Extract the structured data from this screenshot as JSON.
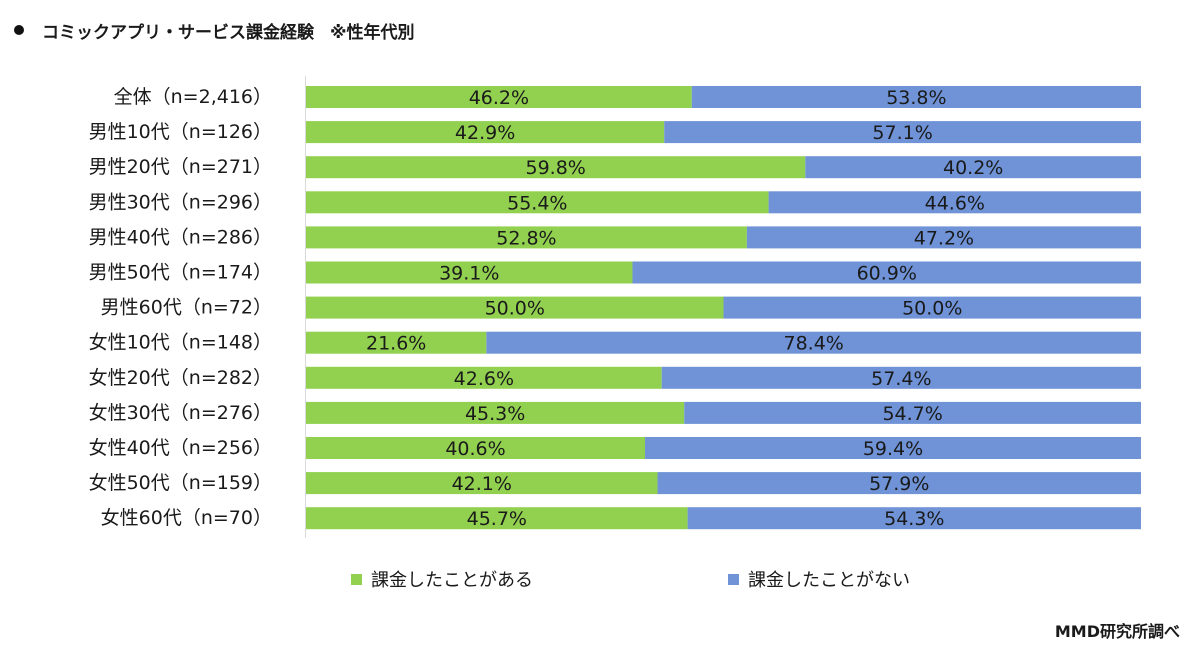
{
  "header": {
    "title": "コミックアプリ・サービス課金経験",
    "note": "※性年代別"
  },
  "colors": {
    "paid": "#92d050",
    "not_paid": "#6f93d6",
    "axis": "#d9d9d9",
    "text": "#1a1a1a"
  },
  "chart_data": {
    "type": "bar",
    "orientation": "horizontal",
    "stacked": "100%",
    "title": "コミックアプリ・サービス課金経験 ※性年代別",
    "categories": [
      "全体（n=2,416）",
      "男性10代（n=126）",
      "男性20代（n=271）",
      "男性30代（n=296）",
      "男性40代（n=286）",
      "男性50代（n=174）",
      "男性60代（n=72）",
      "女性10代（n=148）",
      "女性20代（n=282）",
      "女性30代（n=276）",
      "女性40代（n=256）",
      "女性50代（n=159）",
      "女性60代（n=70）"
    ],
    "series": [
      {
        "name": "課金したことがある",
        "color": "#92d050",
        "values": [
          46.2,
          42.9,
          59.8,
          55.4,
          52.8,
          39.1,
          50.0,
          21.6,
          42.6,
          45.3,
          40.6,
          42.1,
          45.7
        ],
        "labels": [
          "46.2%",
          "42.9%",
          "59.8%",
          "55.4%",
          "52.8%",
          "39.1%",
          "50.0%",
          "21.6%",
          "42.6%",
          "45.3%",
          "40.6%",
          "42.1%",
          "45.7%"
        ]
      },
      {
        "name": "課金したことがない",
        "color": "#6f93d6",
        "values": [
          53.8,
          57.1,
          40.2,
          44.6,
          47.2,
          60.9,
          50.0,
          78.4,
          57.4,
          54.7,
          59.4,
          57.9,
          54.3
        ],
        "labels": [
          "53.8%",
          "57.1%",
          "40.2%",
          "44.6%",
          "47.2%",
          "60.9%",
          "50.0%",
          "78.4%",
          "57.4%",
          "54.7%",
          "59.4%",
          "57.9%",
          "54.3%"
        ]
      }
    ],
    "xlim": [
      0,
      100
    ],
    "legend": "bottom",
    "grid": false
  },
  "footer": {
    "credit": "MMD研究所調べ"
  }
}
